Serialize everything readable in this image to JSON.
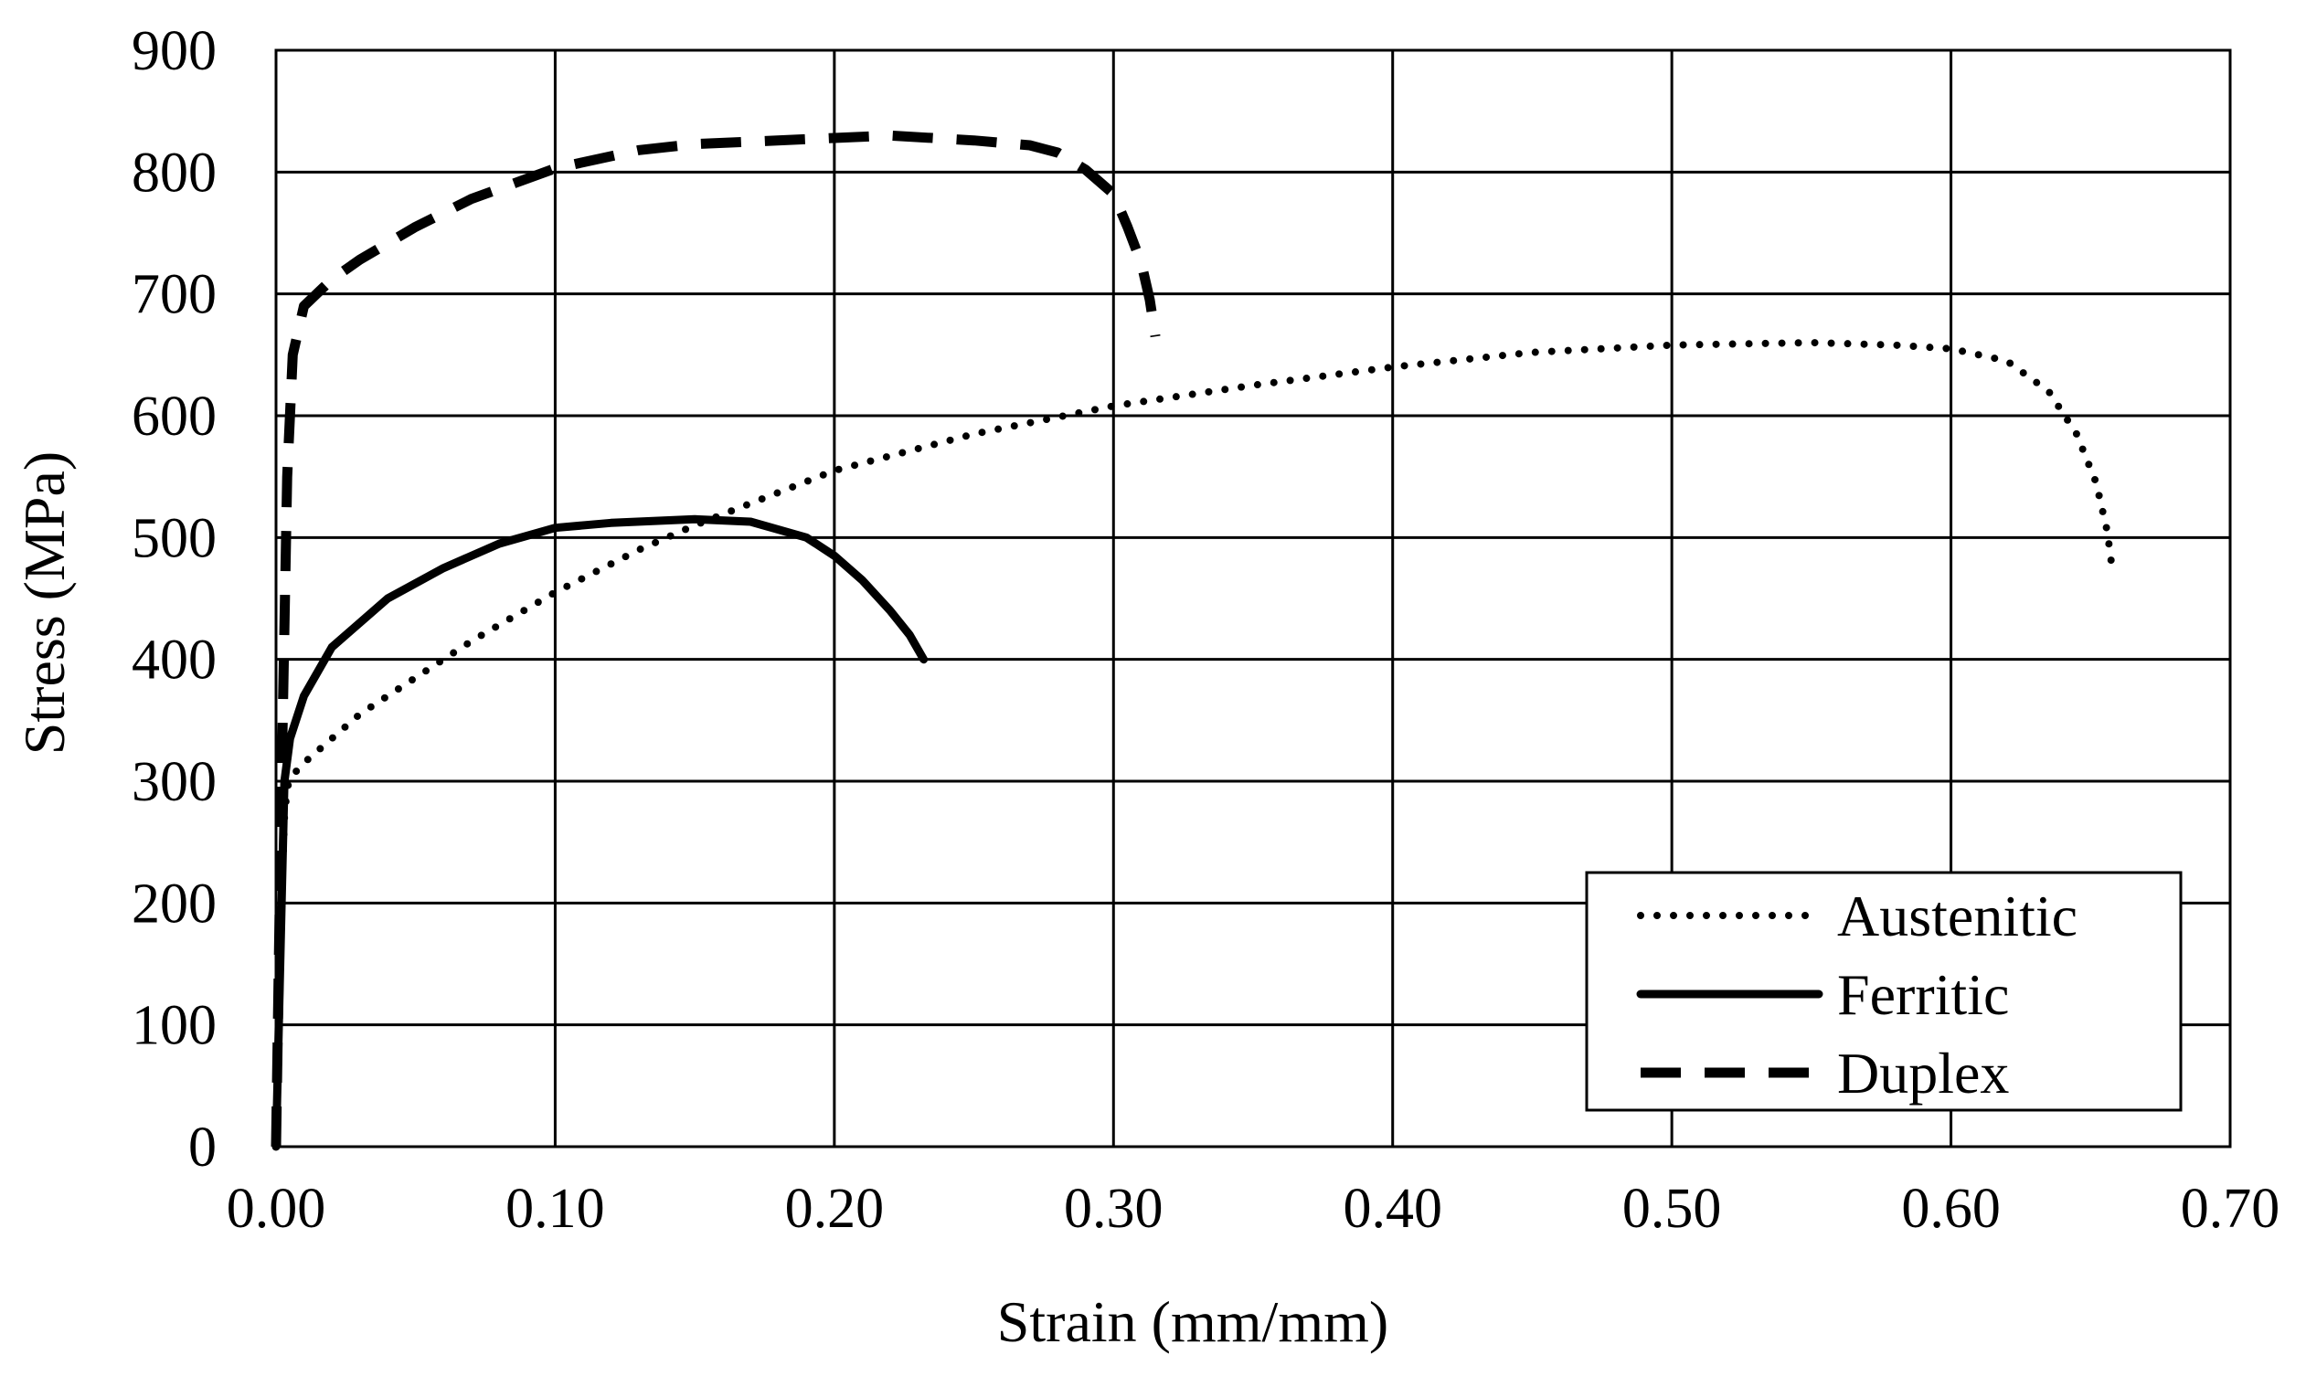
{
  "chart_data": {
    "type": "line",
    "title": "",
    "xlabel": "Strain (mm/mm)",
    "ylabel": "Stress (MPa)",
    "xlim": [
      0,
      0.7
    ],
    "ylim": [
      0,
      900
    ],
    "x_ticks": [
      "0.00",
      "0.10",
      "0.20",
      "0.30",
      "0.40",
      "0.50",
      "0.60",
      "0.70"
    ],
    "y_ticks": [
      "0",
      "100",
      "200",
      "300",
      "400",
      "500",
      "600",
      "700",
      "800",
      "900"
    ],
    "grid": true,
    "legend_position": "bottom-right",
    "colors": {
      "line": "#000000",
      "grid": "#000000",
      "background": "#ffffff"
    },
    "series": [
      {
        "name": "Austenitic",
        "style": "dotted",
        "x": [
          0.0,
          0.002,
          0.003,
          0.004,
          0.006,
          0.01,
          0.02,
          0.03,
          0.05,
          0.07,
          0.1,
          0.13,
          0.15,
          0.2,
          0.25,
          0.3,
          0.35,
          0.4,
          0.45,
          0.5,
          0.55,
          0.58,
          0.6,
          0.62,
          0.635,
          0.645,
          0.652,
          0.656,
          0.658
        ],
        "y": [
          0,
          200,
          270,
          295,
          305,
          315,
          335,
          355,
          385,
          415,
          455,
          490,
          510,
          555,
          585,
          608,
          625,
          640,
          652,
          658,
          660,
          658,
          655,
          645,
          620,
          585,
          545,
          505,
          470
        ]
      },
      {
        "name": "Ferritic",
        "style": "solid",
        "x": [
          0.0,
          0.002,
          0.003,
          0.005,
          0.01,
          0.02,
          0.04,
          0.06,
          0.08,
          0.1,
          0.12,
          0.15,
          0.17,
          0.19,
          0.2,
          0.21,
          0.22,
          0.227,
          0.232
        ],
        "y": [
          0,
          200,
          300,
          335,
          370,
          410,
          450,
          475,
          495,
          508,
          512,
          515,
          513,
          500,
          485,
          465,
          440,
          420,
          400
        ]
      },
      {
        "name": "Duplex",
        "style": "dashed",
        "x": [
          0.0,
          0.002,
          0.004,
          0.006,
          0.01,
          0.02,
          0.03,
          0.05,
          0.07,
          0.1,
          0.13,
          0.15,
          0.2,
          0.22,
          0.25,
          0.27,
          0.28,
          0.29,
          0.3,
          0.305,
          0.31,
          0.313,
          0.315
        ],
        "y": [
          0,
          300,
          550,
          650,
          690,
          712,
          728,
          755,
          778,
          803,
          818,
          823,
          828,
          830,
          826,
          822,
          816,
          802,
          782,
          755,
          725,
          695,
          665
        ]
      }
    ]
  }
}
